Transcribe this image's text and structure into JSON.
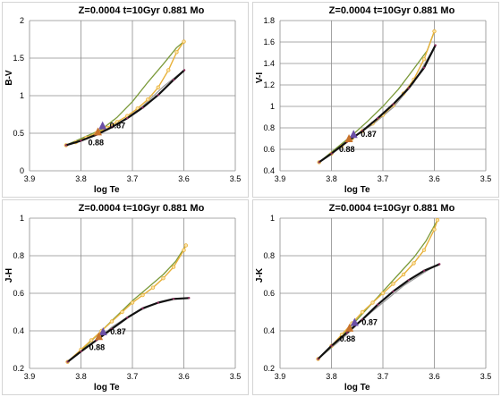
{
  "chart_data": [
    {
      "type": "scatter",
      "title": "Z=0.0004   t=10Gyr   0.881 Mo",
      "xlabel": "log Te",
      "ylabel": "B-V",
      "xlim": [
        3.9,
        3.5
      ],
      "ylim": [
        0,
        2
      ],
      "xticks": [
        "3.9",
        "3.8",
        "3.7",
        "3.6",
        "3.5"
      ],
      "yticks": [
        "0",
        "0.5",
        "1",
        "1.5",
        "2"
      ],
      "x_reversed": true,
      "grid": "vertical and horizontal",
      "series": [
        {
          "color": "#9a9a9a",
          "x": [
            3.829,
            3.76,
            3.72,
            3.68,
            3.64,
            3.599
          ],
          "y": [
            0.34,
            0.52,
            0.66,
            0.86,
            1.12,
            1.34
          ]
        },
        {
          "color": "#7b9a3a",
          "x": [
            3.829,
            3.76,
            3.73,
            3.7,
            3.67,
            3.64,
            3.614,
            3.6
          ],
          "y": [
            0.34,
            0.55,
            0.71,
            0.92,
            1.18,
            1.42,
            1.64,
            1.72
          ]
        },
        {
          "color": "#e8b13a",
          "x": [
            3.829,
            3.81,
            3.79,
            3.77,
            3.75,
            3.73,
            3.71,
            3.69,
            3.67,
            3.65,
            3.63,
            3.614,
            3.6
          ],
          "y": [
            0.34,
            0.38,
            0.44,
            0.5,
            0.57,
            0.65,
            0.73,
            0.83,
            0.95,
            1.11,
            1.34,
            1.58,
            1.72
          ]
        },
        {
          "color": "#111111",
          "x": [
            3.829,
            3.8,
            3.77,
            3.74,
            3.71,
            3.68,
            3.65,
            3.62,
            3.599
          ],
          "y": [
            0.34,
            0.4,
            0.48,
            0.58,
            0.7,
            0.84,
            1.01,
            1.21,
            1.34
          ]
        }
      ],
      "markers": [
        {
          "label": "0.87",
          "x": 3.758,
          "y": 0.6,
          "color": "#6a4fa6"
        },
        {
          "label": "0.88",
          "x": 3.767,
          "y": 0.52,
          "color": "#c8732c"
        }
      ]
    },
    {
      "type": "scatter",
      "title": "Z=0.0004   t=10Gyr   0.881 Mo",
      "xlabel": "log Te",
      "ylabel": "V-I",
      "xlim": [
        3.9,
        3.5
      ],
      "ylim": [
        0.4,
        1.8
      ],
      "xticks": [
        "3.9",
        "3.8",
        "3.7",
        "3.6",
        "3.5"
      ],
      "yticks": [
        "0.4",
        "0.6",
        "0.8",
        "1",
        "1.2",
        "1.4",
        "1.6",
        "1.8"
      ],
      "x_reversed": true,
      "grid": "vertical and horizontal",
      "series": [
        {
          "color": "#9a9a9a",
          "x": [
            3.824,
            3.76,
            3.72,
            3.68,
            3.64,
            3.598
          ],
          "y": [
            0.48,
            0.71,
            0.83,
            0.99,
            1.22,
            1.57
          ]
        },
        {
          "color": "#7b9a3a",
          "x": [
            3.824,
            3.76,
            3.73,
            3.7,
            3.67,
            3.64,
            3.614,
            3.6
          ],
          "y": [
            0.48,
            0.73,
            0.86,
            1.0,
            1.16,
            1.35,
            1.52,
            1.7
          ]
        },
        {
          "color": "#e8b13a",
          "x": [
            3.824,
            3.8,
            3.78,
            3.76,
            3.74,
            3.72,
            3.7,
            3.68,
            3.66,
            3.64,
            3.62,
            3.6
          ],
          "y": [
            0.48,
            0.56,
            0.63,
            0.7,
            0.77,
            0.84,
            0.92,
            1.01,
            1.12,
            1.25,
            1.44,
            1.7
          ]
        },
        {
          "color": "#111111",
          "x": [
            3.824,
            3.8,
            3.77,
            3.74,
            3.71,
            3.68,
            3.65,
            3.62,
            3.598
          ],
          "y": [
            0.48,
            0.56,
            0.67,
            0.77,
            0.89,
            1.02,
            1.17,
            1.36,
            1.57
          ]
        }
      ],
      "markers": [
        {
          "label": "0.87",
          "x": 3.757,
          "y": 0.74,
          "color": "#6a4fa6"
        },
        {
          "label": "0.88",
          "x": 3.766,
          "y": 0.7,
          "color": "#c8732c"
        }
      ]
    },
    {
      "type": "scatter",
      "title": "Z=0.0004   t=10Gyr   0.881 Mo",
      "xlabel": "log Te",
      "ylabel": "J-H",
      "xlim": [
        3.9,
        3.5
      ],
      "ylim": [
        0.2,
        1.0
      ],
      "xticks": [
        "3.9",
        "3.8",
        "3.7",
        "3.6",
        "3.5"
      ],
      "yticks": [
        "0.2",
        "0.4",
        "0.6",
        "0.8",
        "1"
      ],
      "x_reversed": true,
      "grid": "vertical and horizontal",
      "series": [
        {
          "color": "#9a9a9a",
          "x": [
            3.826,
            3.8,
            3.77,
            3.74,
            3.7,
            3.66,
            3.62,
            3.59
          ],
          "y": [
            0.235,
            0.29,
            0.35,
            0.42,
            0.49,
            0.54,
            0.57,
            0.575
          ]
        },
        {
          "color": "#7b9a3a",
          "x": [
            3.826,
            3.79,
            3.76,
            3.73,
            3.7,
            3.67,
            3.64,
            3.616,
            3.596
          ],
          "y": [
            0.235,
            0.32,
            0.4,
            0.48,
            0.56,
            0.63,
            0.7,
            0.77,
            0.855
          ]
        },
        {
          "color": "#e8b13a",
          "x": [
            3.826,
            3.8,
            3.78,
            3.76,
            3.74,
            3.72,
            3.7,
            3.68,
            3.66,
            3.64,
            3.62,
            3.6,
            3.596
          ],
          "y": [
            0.235,
            0.3,
            0.35,
            0.4,
            0.45,
            0.5,
            0.55,
            0.59,
            0.63,
            0.68,
            0.74,
            0.83,
            0.855
          ]
        },
        {
          "color": "#111111",
          "x": [
            3.826,
            3.8,
            3.77,
            3.74,
            3.71,
            3.68,
            3.65,
            3.62,
            3.59
          ],
          "y": [
            0.235,
            0.29,
            0.35,
            0.41,
            0.47,
            0.52,
            0.55,
            0.57,
            0.575
          ]
        }
      ],
      "markers": [
        {
          "label": "0.87",
          "x": 3.757,
          "y": 0.395,
          "color": "#6a4fa6"
        },
        {
          "label": "0.88",
          "x": 3.765,
          "y": 0.37,
          "color": "#c8732c"
        }
      ]
    },
    {
      "type": "scatter",
      "title": "Z=0.0004   t=10Gyr   0.881 Mo",
      "xlabel": "log Te",
      "ylabel": "J-K",
      "xlim": [
        3.9,
        3.5
      ],
      "ylim": [
        0.2,
        1.0
      ],
      "xticks": [
        "3.9",
        "3.8",
        "3.7",
        "3.6",
        "3.5"
      ],
      "yticks": [
        "0.2",
        "0.4",
        "0.6",
        "0.8",
        "1"
      ],
      "x_reversed": true,
      "grid": "vertical and horizontal",
      "series": [
        {
          "color": "#9a9a9a",
          "x": [
            3.826,
            3.8,
            3.77,
            3.74,
            3.7,
            3.66,
            3.62,
            3.59
          ],
          "y": [
            0.25,
            0.31,
            0.38,
            0.46,
            0.55,
            0.64,
            0.71,
            0.76
          ]
        },
        {
          "color": "#7b9a3a",
          "x": [
            3.826,
            3.79,
            3.76,
            3.73,
            3.7,
            3.67,
            3.64,
            3.616,
            3.594
          ],
          "y": [
            0.25,
            0.34,
            0.43,
            0.52,
            0.61,
            0.7,
            0.79,
            0.88,
            0.99
          ]
        },
        {
          "color": "#e8b13a",
          "x": [
            3.826,
            3.8,
            3.78,
            3.76,
            3.74,
            3.72,
            3.7,
            3.68,
            3.66,
            3.64,
            3.62,
            3.6,
            3.594
          ],
          "y": [
            0.25,
            0.32,
            0.38,
            0.44,
            0.5,
            0.55,
            0.6,
            0.65,
            0.7,
            0.76,
            0.83,
            0.94,
            0.99
          ]
        },
        {
          "color": "#111111",
          "x": [
            3.826,
            3.8,
            3.77,
            3.74,
            3.71,
            3.68,
            3.65,
            3.62,
            3.59
          ],
          "y": [
            0.25,
            0.32,
            0.39,
            0.46,
            0.54,
            0.61,
            0.67,
            0.72,
            0.755
          ]
        }
      ],
      "markers": [
        {
          "label": "0.87",
          "x": 3.755,
          "y": 0.445,
          "color": "#6a4fa6"
        },
        {
          "label": "0.88",
          "x": 3.765,
          "y": 0.415,
          "color": "#c8732c"
        }
      ]
    }
  ]
}
